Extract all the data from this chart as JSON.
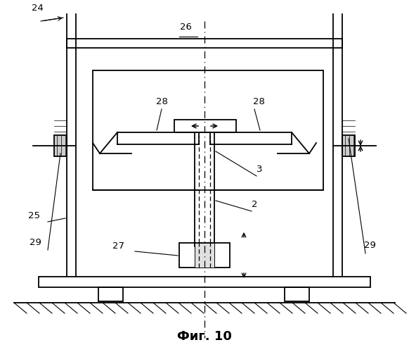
{
  "title": "Фиг. 10",
  "title_fontsize": 13,
  "background_color": "#ffffff",
  "line_color": "#000000",
  "gray_color": "#b0b0b0"
}
